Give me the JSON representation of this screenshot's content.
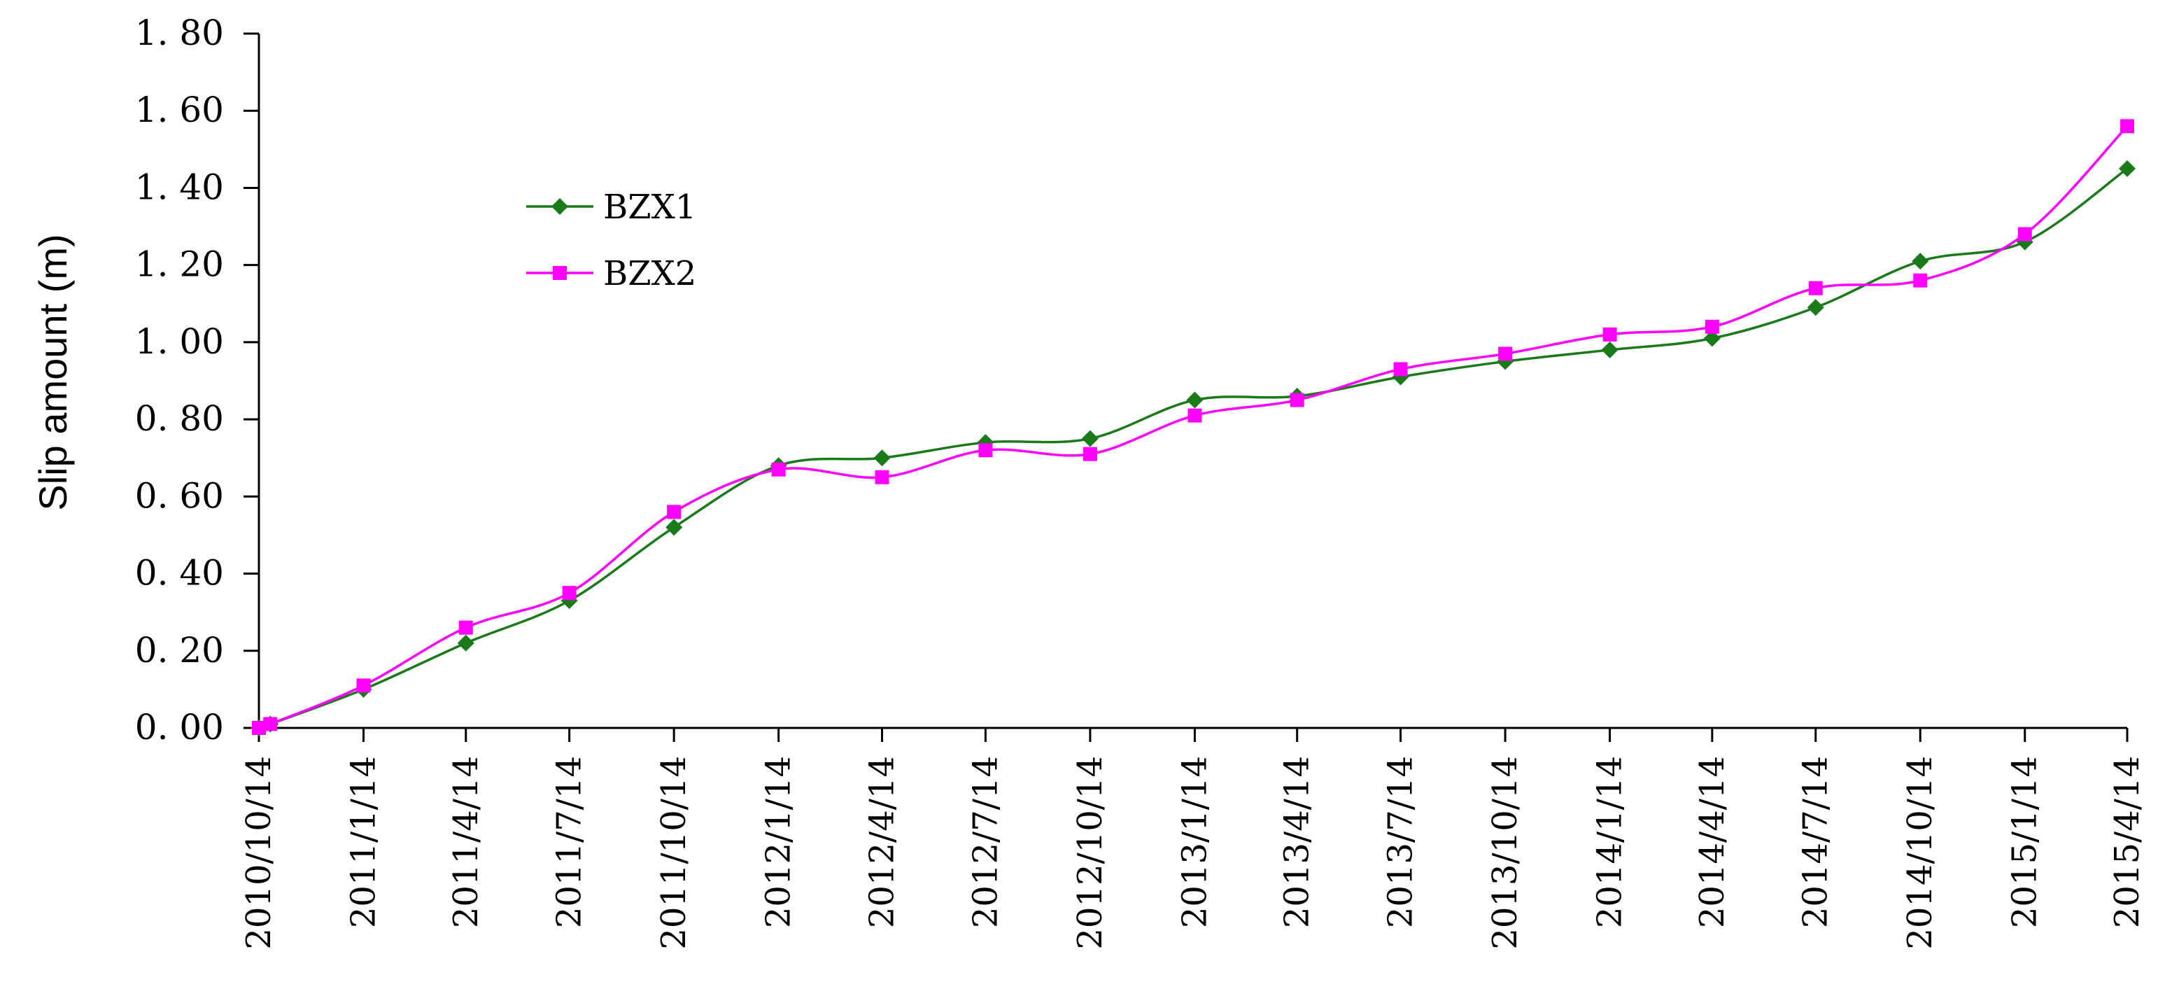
{
  "chart_data": {
    "type": "line",
    "title": "",
    "xlabel": "",
    "ylabel": "Slip amount (m)",
    "ylim": [
      0,
      1.8
    ],
    "yticks": [
      "0.00",
      "0.20",
      "0.40",
      "0.60",
      "0.80",
      "1.00",
      "1.20",
      "1.40",
      "1.60",
      "1.80"
    ],
    "categories": [
      "2010/10/14",
      "2011/1/14",
      "2011/4/14",
      "2011/7/14",
      "2011/10/14",
      "2012/1/14",
      "2012/4/14",
      "2012/7/14",
      "2012/10/14",
      "2013/1/14",
      "2013/4/14",
      "2013/7/14",
      "2013/10/14",
      "2014/1/14",
      "2014/4/14",
      "2014/7/14",
      "2014/10/14",
      "2015/1/14",
      "2015/4/14"
    ],
    "grid": false,
    "legend_position": "upper-left",
    "series": [
      {
        "name": "BZX1",
        "color": "#1a7a1a",
        "marker": "diamond",
        "points": [
          {
            "x": "2010/10/14",
            "y": 0.0
          },
          {
            "x": "2010/10/24",
            "y": 0.01
          },
          {
            "x": "2011/1/14",
            "y": 0.1
          },
          {
            "x": "2011/4/14",
            "y": 0.22
          },
          {
            "x": "2011/7/14",
            "y": 0.33
          },
          {
            "x": "2011/10/14",
            "y": 0.52
          },
          {
            "x": "2012/1/14",
            "y": 0.68
          },
          {
            "x": "2012/4/14",
            "y": 0.7
          },
          {
            "x": "2012/7/14",
            "y": 0.74
          },
          {
            "x": "2012/10/14",
            "y": 0.75
          },
          {
            "x": "2013/1/14",
            "y": 0.85
          },
          {
            "x": "2013/4/14",
            "y": 0.86
          },
          {
            "x": "2013/7/14",
            "y": 0.91
          },
          {
            "x": "2013/10/14",
            "y": 0.95
          },
          {
            "x": "2014/1/14",
            "y": 0.98
          },
          {
            "x": "2014/4/14",
            "y": 1.01
          },
          {
            "x": "2014/7/14",
            "y": 1.09
          },
          {
            "x": "2014/10/14",
            "y": 1.21
          },
          {
            "x": "2015/1/14",
            "y": 1.26
          },
          {
            "x": "2015/4/14",
            "y": 1.45
          }
        ]
      },
      {
        "name": "BZX2",
        "color": "#ff00ff",
        "marker": "square",
        "points": [
          {
            "x": "2010/10/14",
            "y": 0.0
          },
          {
            "x": "2010/10/24",
            "y": 0.01
          },
          {
            "x": "2011/1/14",
            "y": 0.11
          },
          {
            "x": "2011/4/14",
            "y": 0.26
          },
          {
            "x": "2011/7/14",
            "y": 0.35
          },
          {
            "x": "2011/10/14",
            "y": 0.56
          },
          {
            "x": "2012/1/14",
            "y": 0.67
          },
          {
            "x": "2012/4/14",
            "y": 0.65
          },
          {
            "x": "2012/7/14",
            "y": 0.72
          },
          {
            "x": "2012/10/14",
            "y": 0.71
          },
          {
            "x": "2013/1/14",
            "y": 0.81
          },
          {
            "x": "2013/4/14",
            "y": 0.85
          },
          {
            "x": "2013/7/14",
            "y": 0.93
          },
          {
            "x": "2013/10/14",
            "y": 0.97
          },
          {
            "x": "2014/1/14",
            "y": 1.02
          },
          {
            "x": "2014/4/14",
            "y": 1.04
          },
          {
            "x": "2014/7/14",
            "y": 1.14
          },
          {
            "x": "2014/10/14",
            "y": 1.16
          },
          {
            "x": "2015/1/14",
            "y": 1.28
          },
          {
            "x": "2015/4/14",
            "y": 1.56
          }
        ]
      }
    ]
  }
}
